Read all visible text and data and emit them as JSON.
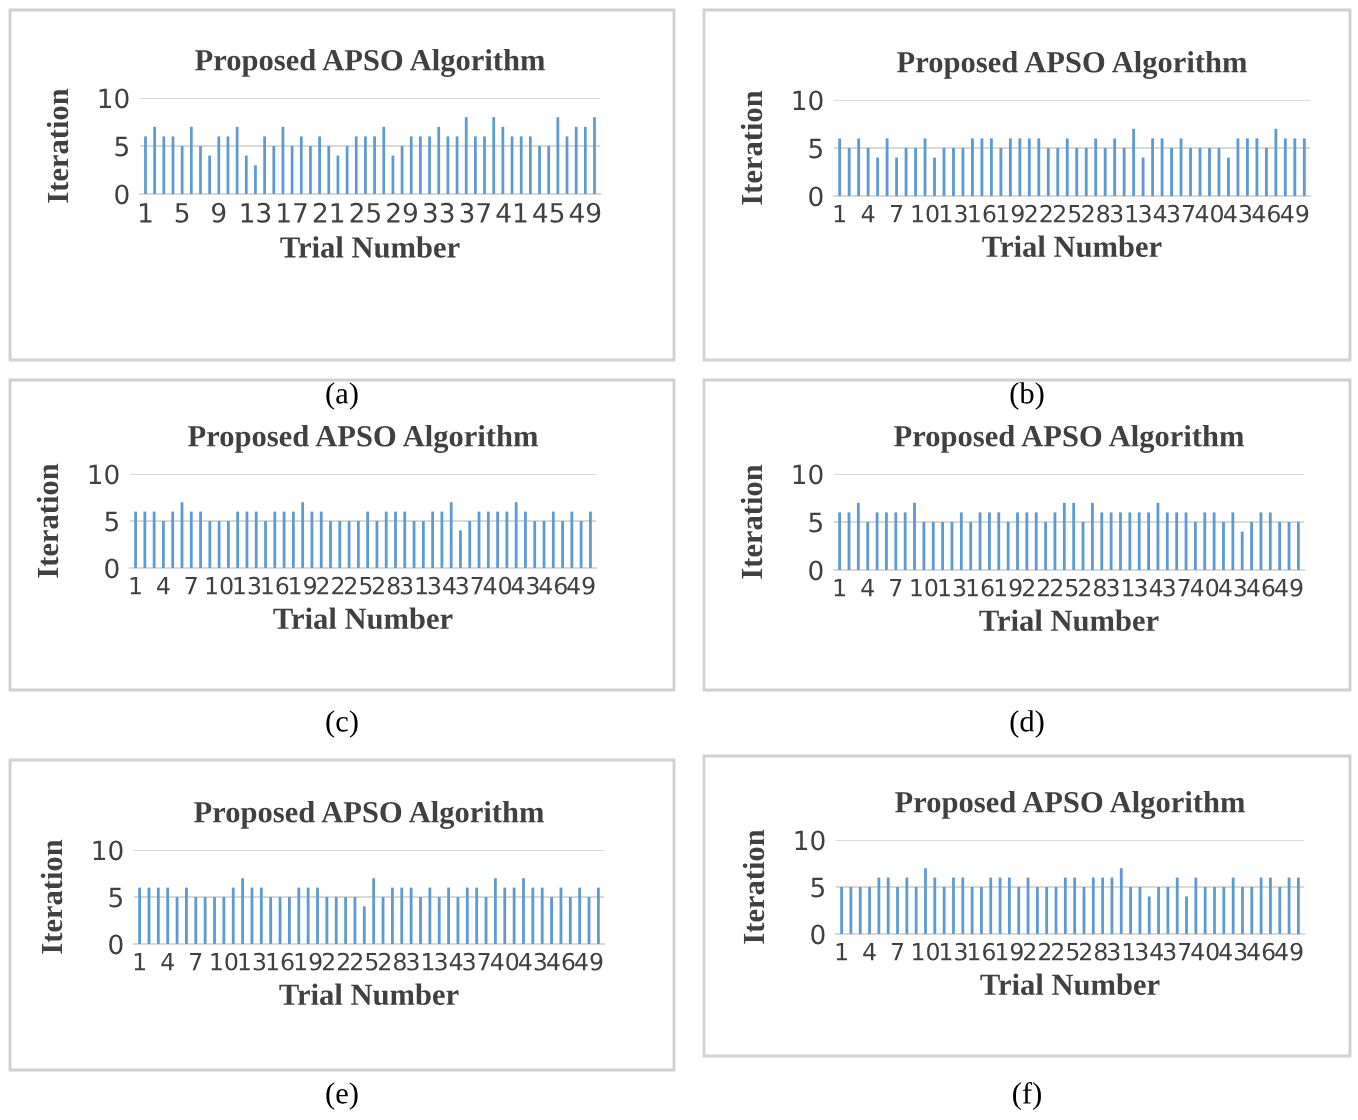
{
  "chart_data": [
    {
      "type": "bar",
      "title": "Proposed APSO Algorithm",
      "xlabel": "Trial Number",
      "ylabel": "Iteration",
      "annotations": [
        "(a)"
      ],
      "color": "#5b9bd5",
      "ylim": [
        0,
        10
      ],
      "yticks": [
        0,
        5,
        10
      ],
      "grid": "y",
      "categories": [
        "1",
        null,
        null,
        null,
        "5",
        null,
        null,
        null,
        "9",
        null,
        null,
        null,
        "13",
        null,
        null,
        null,
        "17",
        null,
        null,
        null,
        "21",
        null,
        null,
        null,
        "25",
        null,
        null,
        null,
        "29",
        null,
        null,
        null,
        "33",
        null,
        null,
        null,
        "37",
        null,
        null,
        null,
        "41",
        null,
        null,
        null,
        "45",
        null,
        null,
        null,
        "49",
        null
      ],
      "values": [
        6,
        7,
        6,
        6,
        5,
        7,
        5,
        4,
        6,
        6,
        7,
        4,
        3,
        6,
        5,
        7,
        5,
        6,
        5,
        6,
        5,
        4,
        5,
        6,
        6,
        6,
        7,
        4,
        5,
        6,
        6,
        6,
        7,
        6,
        6,
        8,
        6,
        6,
        8,
        7,
        6,
        6,
        6,
        5,
        5,
        8,
        6,
        7,
        7,
        8
      ]
    },
    {
      "type": "bar",
      "title": "Proposed APSO Algorithm",
      "xlabel": "Trial Number",
      "ylabel": "Iteration",
      "annotations": [
        "(b)"
      ],
      "color": "#5b9bd5",
      "ylim": [
        0,
        10
      ],
      "yticks": [
        0,
        5,
        10
      ],
      "grid": "y",
      "categories": [
        "1",
        null,
        null,
        "4",
        null,
        null,
        "7",
        null,
        null,
        "10",
        null,
        null,
        "13",
        null,
        null,
        "16",
        null,
        null,
        "19",
        null,
        null,
        "22",
        null,
        null,
        "25",
        null,
        null,
        "28",
        null,
        null,
        "31",
        null,
        null,
        "34",
        null,
        null,
        "37",
        null,
        null,
        "40",
        null,
        null,
        "43",
        null,
        null,
        "46",
        null,
        null,
        "49",
        null
      ],
      "values": [
        6,
        5,
        6,
        5,
        4,
        6,
        4,
        5,
        5,
        6,
        4,
        5,
        5,
        5,
        6,
        6,
        6,
        5,
        6,
        6,
        6,
        6,
        5,
        5,
        6,
        5,
        5,
        6,
        5,
        6,
        5,
        7,
        4,
        6,
        6,
        5,
        6,
        5,
        5,
        5,
        5,
        4,
        6,
        6,
        6,
        5,
        7,
        6,
        6,
        6
      ]
    },
    {
      "type": "bar",
      "title": "Proposed APSO Algorithm",
      "xlabel": "Trial Number",
      "ylabel": "Iteration",
      "annotations": [
        "(c)"
      ],
      "color": "#5b9bd5",
      "ylim": [
        0,
        10
      ],
      "yticks": [
        0,
        5,
        10
      ],
      "grid": "y",
      "categories": [
        "1",
        null,
        null,
        "4",
        null,
        null,
        "7",
        null,
        null,
        "10",
        null,
        null,
        "13",
        null,
        null,
        "16",
        null,
        null,
        "19",
        null,
        null,
        "22",
        null,
        null,
        "25",
        null,
        null,
        "28",
        null,
        null,
        "31",
        null,
        null,
        "34",
        null,
        null,
        "37",
        null,
        null,
        "40",
        null,
        null,
        "43",
        null,
        null,
        "46",
        null,
        null,
        "49",
        null
      ],
      "values": [
        6,
        6,
        6,
        5,
        6,
        7,
        6,
        6,
        5,
        5,
        5,
        6,
        6,
        6,
        5,
        6,
        6,
        6,
        7,
        6,
        6,
        5,
        5,
        5,
        5,
        6,
        5,
        6,
        6,
        6,
        5,
        5,
        6,
        6,
        7,
        4,
        5,
        6,
        6,
        6,
        6,
        7,
        6,
        5,
        5,
        6,
        5,
        6,
        5,
        6
      ]
    },
    {
      "type": "bar",
      "title": "Proposed APSO Algorithm",
      "xlabel": "Trial Number",
      "ylabel": "Iteration",
      "annotations": [
        "(d)"
      ],
      "color": "#5b9bd5",
      "ylim": [
        0,
        10
      ],
      "yticks": [
        0,
        5,
        10
      ],
      "grid": "y",
      "categories": [
        "1",
        null,
        null,
        "4",
        null,
        null,
        "7",
        null,
        null,
        "10",
        null,
        null,
        "13",
        null,
        null,
        "16",
        null,
        null,
        "19",
        null,
        null,
        "22",
        null,
        null,
        "25",
        null,
        null,
        "28",
        null,
        null,
        "31",
        null,
        null,
        "34",
        null,
        null,
        "37",
        null,
        null,
        "40",
        null,
        null,
        "43",
        null,
        null,
        "46",
        null,
        null,
        "49",
        null
      ],
      "values": [
        6,
        6,
        7,
        5,
        6,
        6,
        6,
        6,
        7,
        5,
        5,
        5,
        5,
        6,
        5,
        6,
        6,
        6,
        5,
        6,
        6,
        6,
        5,
        6,
        7,
        7,
        5,
        7,
        6,
        6,
        6,
        6,
        6,
        6,
        7,
        6,
        6,
        6,
        5,
        6,
        6,
        5,
        6,
        4,
        5,
        6,
        6,
        5,
        5,
        5
      ]
    },
    {
      "type": "bar",
      "title": "Proposed APSO Algorithm",
      "xlabel": "Trial Number",
      "ylabel": "Iteration",
      "annotations": [
        "(e)"
      ],
      "color": "#5b9bd5",
      "ylim": [
        0,
        10
      ],
      "yticks": [
        0,
        5,
        10
      ],
      "grid": "y",
      "categories": [
        "1",
        null,
        null,
        "4",
        null,
        null,
        "7",
        null,
        null,
        "10",
        null,
        null,
        "13",
        null,
        null,
        "16",
        null,
        null,
        "19",
        null,
        null,
        "22",
        null,
        null,
        "25",
        null,
        null,
        "28",
        null,
        null,
        "31",
        null,
        null,
        "34",
        null,
        null,
        "37",
        null,
        null,
        "40",
        null,
        null,
        "43",
        null,
        null,
        "46",
        null,
        null,
        "49",
        null
      ],
      "values": [
        6,
        6,
        6,
        6,
        5,
        6,
        5,
        5,
        5,
        5,
        6,
        7,
        6,
        6,
        5,
        5,
        5,
        6,
        6,
        6,
        5,
        5,
        5,
        5,
        4,
        7,
        5,
        6,
        6,
        6,
        5,
        6,
        5,
        6,
        5,
        6,
        6,
        5,
        7,
        6,
        6,
        7,
        6,
        6,
        5,
        6,
        5,
        6,
        5,
        6
      ]
    },
    {
      "type": "bar",
      "title": "Proposed APSO Algorithm",
      "xlabel": "Trial Number",
      "ylabel": "Iteration",
      "annotations": [
        "(f)"
      ],
      "color": "#5b9bd5",
      "ylim": [
        0,
        10
      ],
      "yticks": [
        0,
        5,
        10
      ],
      "grid": "y",
      "categories": [
        "1",
        null,
        null,
        "4",
        null,
        null,
        "7",
        null,
        null,
        "10",
        null,
        null,
        "13",
        null,
        null,
        "16",
        null,
        null,
        "19",
        null,
        null,
        "22",
        null,
        null,
        "25",
        null,
        null,
        "28",
        null,
        null,
        "31",
        null,
        null,
        "34",
        null,
        null,
        "37",
        null,
        null,
        "40",
        null,
        null,
        "43",
        null,
        null,
        "46",
        null,
        null,
        "49",
        null
      ],
      "values": [
        5,
        5,
        5,
        5,
        6,
        6,
        5,
        6,
        5,
        7,
        6,
        5,
        6,
        6,
        5,
        5,
        6,
        6,
        6,
        5,
        6,
        5,
        5,
        5,
        6,
        6,
        5,
        6,
        6,
        6,
        7,
        5,
        5,
        4,
        5,
        5,
        6,
        4,
        6,
        5,
        5,
        5,
        6,
        5,
        5,
        6,
        6,
        5,
        6,
        6
      ]
    }
  ]
}
